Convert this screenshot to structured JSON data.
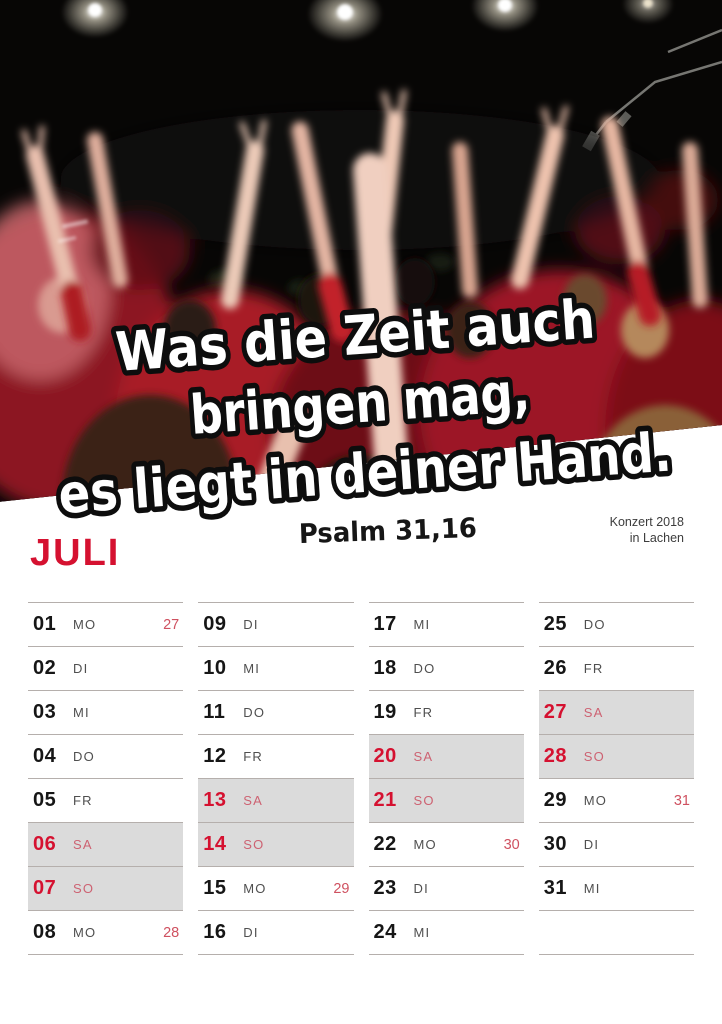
{
  "header": {
    "month": "JULI",
    "credit_line1": "Konzert 2018",
    "credit_line2": "in Lachen"
  },
  "overlay": {
    "line1": "Was die Zeit auch",
    "line2": "bringen mag,",
    "line3": "es liegt in deiner Hand.",
    "reference": "Psalm 31,16"
  },
  "colors": {
    "accent_red": "#d51130",
    "week_number_red": "#cf5160",
    "weekend_label_red": "#cd6272",
    "weekend_bg": "#dbdbdb",
    "grid_line": "#b5afac"
  },
  "calendar": {
    "rows_per_column": 8,
    "columns": [
      [
        {
          "day": "01",
          "weekday": "MO",
          "week": "27",
          "weekend": false
        },
        {
          "day": "02",
          "weekday": "DI",
          "week": "",
          "weekend": false
        },
        {
          "day": "03",
          "weekday": "MI",
          "week": "",
          "weekend": false
        },
        {
          "day": "04",
          "weekday": "DO",
          "week": "",
          "weekend": false
        },
        {
          "day": "05",
          "weekday": "FR",
          "week": "",
          "weekend": false
        },
        {
          "day": "06",
          "weekday": "SA",
          "week": "",
          "weekend": true
        },
        {
          "day": "07",
          "weekday": "SO",
          "week": "",
          "weekend": true
        },
        {
          "day": "08",
          "weekday": "MO",
          "week": "28",
          "weekend": false
        }
      ],
      [
        {
          "day": "09",
          "weekday": "DI",
          "week": "",
          "weekend": false
        },
        {
          "day": "10",
          "weekday": "MI",
          "week": "",
          "weekend": false
        },
        {
          "day": "11",
          "weekday": "DO",
          "week": "",
          "weekend": false
        },
        {
          "day": "12",
          "weekday": "FR",
          "week": "",
          "weekend": false
        },
        {
          "day": "13",
          "weekday": "SA",
          "week": "",
          "weekend": true
        },
        {
          "day": "14",
          "weekday": "SO",
          "week": "",
          "weekend": true
        },
        {
          "day": "15",
          "weekday": "MO",
          "week": "29",
          "weekend": false
        },
        {
          "day": "16",
          "weekday": "DI",
          "week": "",
          "weekend": false
        }
      ],
      [
        {
          "day": "17",
          "weekday": "MI",
          "week": "",
          "weekend": false
        },
        {
          "day": "18",
          "weekday": "DO",
          "week": "",
          "weekend": false
        },
        {
          "day": "19",
          "weekday": "FR",
          "week": "",
          "weekend": false
        },
        {
          "day": "20",
          "weekday": "SA",
          "week": "",
          "weekend": true
        },
        {
          "day": "21",
          "weekday": "SO",
          "week": "",
          "weekend": true
        },
        {
          "day": "22",
          "weekday": "MO",
          "week": "30",
          "weekend": false
        },
        {
          "day": "23",
          "weekday": "DI",
          "week": "",
          "weekend": false
        },
        {
          "day": "24",
          "weekday": "MI",
          "week": "",
          "weekend": false
        }
      ],
      [
        {
          "day": "25",
          "weekday": "DO",
          "week": "",
          "weekend": false
        },
        {
          "day": "26",
          "weekday": "FR",
          "week": "",
          "weekend": false
        },
        {
          "day": "27",
          "weekday": "SA",
          "week": "",
          "weekend": true
        },
        {
          "day": "28",
          "weekday": "SO",
          "week": "",
          "weekend": true
        },
        {
          "day": "29",
          "weekday": "MO",
          "week": "31",
          "weekend": false
        },
        {
          "day": "30",
          "weekday": "DI",
          "week": "",
          "weekend": false
        },
        {
          "day": "31",
          "weekday": "MI",
          "week": "",
          "weekend": false
        }
      ]
    ]
  }
}
